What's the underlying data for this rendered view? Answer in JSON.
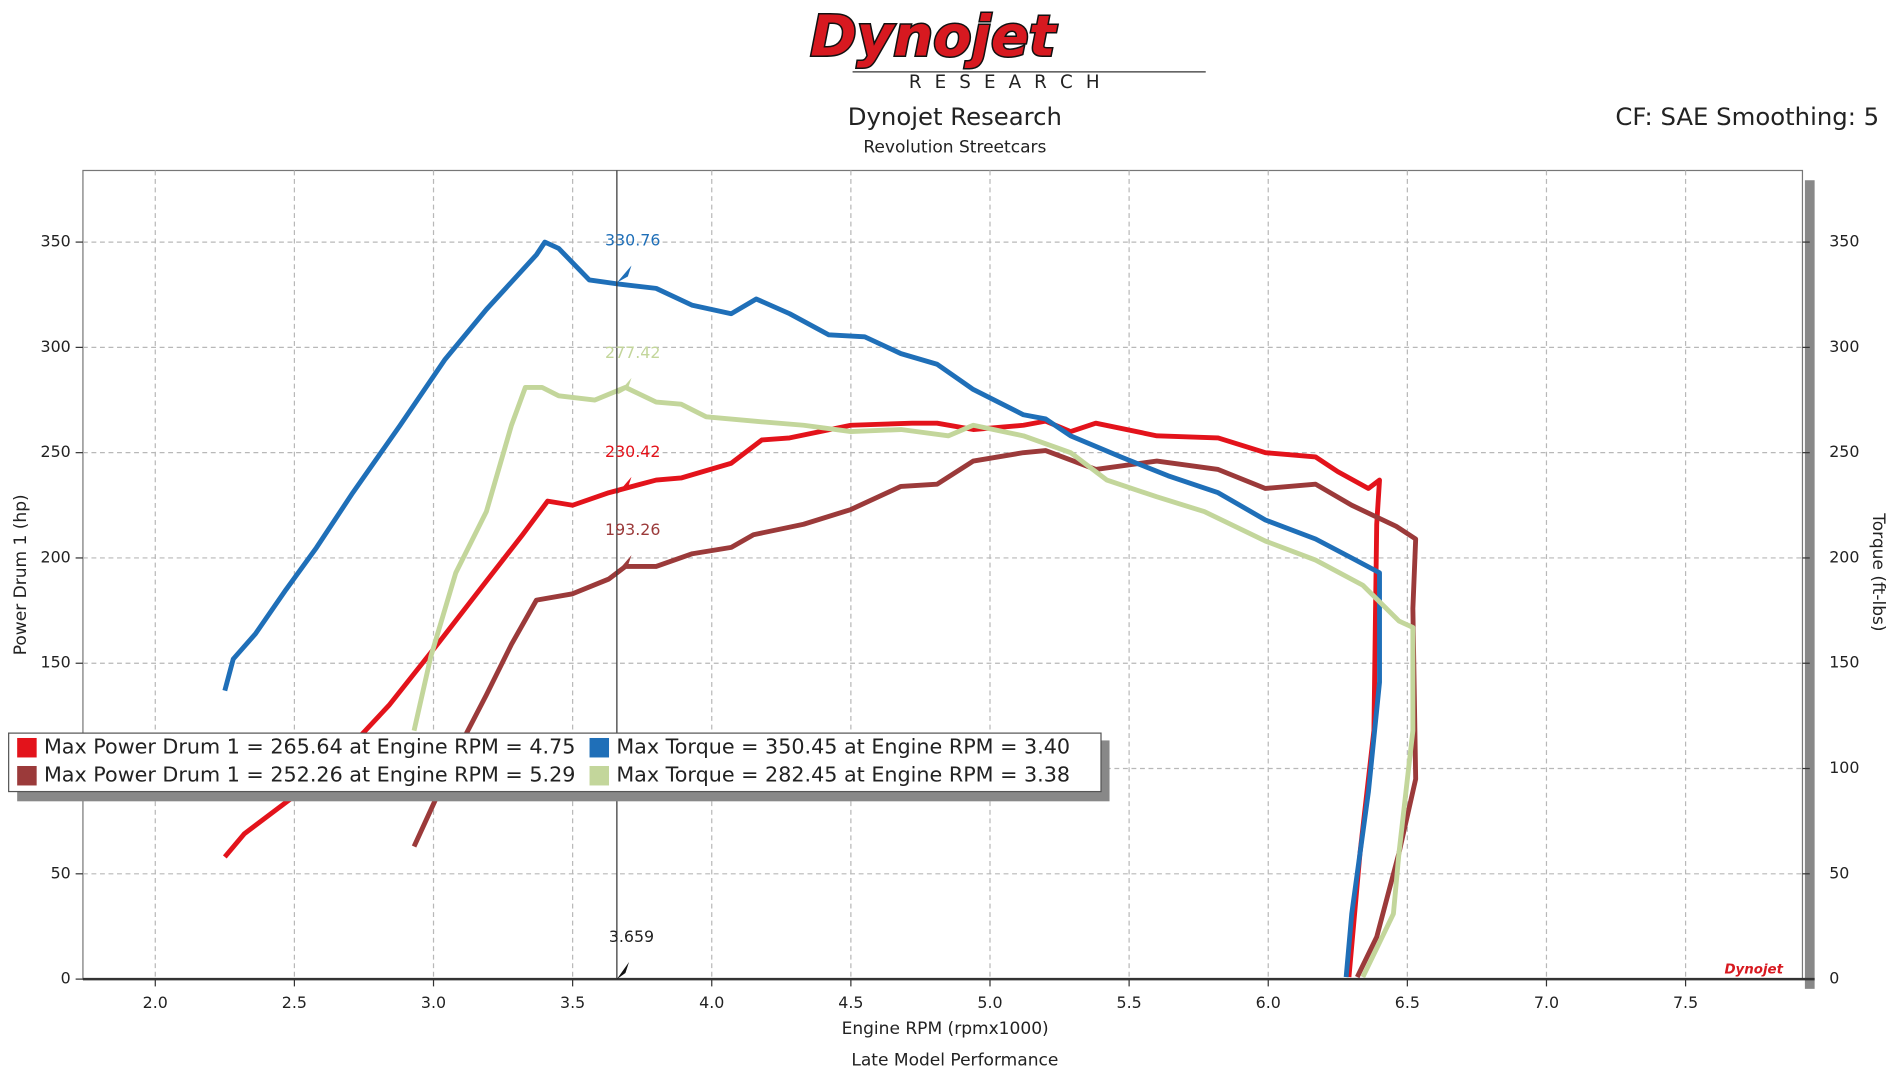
{
  "chart_data": {
    "type": "line",
    "logo": "Dynojet",
    "logo_subtitle": "R E S E A R C H",
    "title": "Dynojet Research",
    "subtitle": "Revolution Streetcars",
    "correction": "CF: SAE Smoothing: 5",
    "x_label": "Engine RPM (rpmx1000)",
    "y_label": "Power Drum 1 (hp)",
    "y2_label": "Torque (ft-lbs)",
    "footer": "Late Model Performance",
    "xlim": [
      1.74,
      7.92
    ],
    "ylim": [
      0,
      384
    ],
    "y2lim": [
      0,
      384
    ],
    "xticks": [
      {
        "value": 2.0,
        "label": "2.0"
      },
      {
        "value": 2.5,
        "label": "2.5"
      },
      {
        "value": 3.0,
        "label": "3.0"
      },
      {
        "value": 3.5,
        "label": "3.5"
      },
      {
        "value": 4.0,
        "label": "4.0"
      },
      {
        "value": 4.5,
        "label": "4.5"
      },
      {
        "value": 5.0,
        "label": "5.0"
      },
      {
        "value": 5.5,
        "label": "5.5"
      },
      {
        "value": 6.0,
        "label": "6.0"
      },
      {
        "value": 6.5,
        "label": "6.5"
      },
      {
        "value": 7.0,
        "label": "7.0"
      },
      {
        "value": 7.5,
        "label": "7.5"
      }
    ],
    "yticks": [
      0,
      50,
      100,
      150,
      200,
      250,
      300,
      350
    ],
    "y2ticks": [
      0,
      50,
      100,
      150,
      200,
      250,
      300,
      350
    ],
    "grid": true,
    "series": [
      {
        "name": "Max Power Drum 1 = 265.64 at Engine RPM = 4.75",
        "color": "#e3131b",
        "x": [
          2.25,
          2.32,
          2.49,
          2.67,
          2.84,
          3.02,
          3.19,
          3.32,
          3.41,
          3.5,
          3.63,
          3.8,
          3.89,
          4.07,
          4.18,
          4.28,
          4.5,
          4.72,
          4.81,
          4.94,
          5.12,
          5.2,
          5.29,
          5.38,
          5.6,
          5.82,
          5.99,
          6.17,
          6.25,
          6.36,
          6.4,
          6.39,
          6.38,
          6.33,
          6.29
        ],
        "values": [
          58,
          69,
          86,
          106,
          130,
          160,
          189,
          211,
          227,
          225,
          231,
          237,
          238,
          245,
          256,
          257,
          263,
          264,
          264,
          261,
          263,
          265,
          260,
          264,
          258,
          257,
          250,
          248,
          241,
          233,
          237,
          216,
          118,
          60,
          1
        ]
      },
      {
        "name": "Max Power Drum 1 = 252.26 at Engine RPM = 5.29",
        "color": "#9b3a3a",
        "x": [
          2.93,
          3.02,
          3.1,
          3.19,
          3.28,
          3.37,
          3.5,
          3.63,
          3.69,
          3.8,
          3.93,
          4.07,
          4.15,
          4.33,
          4.5,
          4.68,
          4.81,
          4.94,
          5.12,
          5.2,
          5.38,
          5.6,
          5.82,
          5.99,
          6.17,
          6.3,
          6.46,
          6.53,
          6.52,
          6.53,
          6.47,
          6.39,
          6.32
        ],
        "values": [
          63,
          89,
          112,
          135,
          159,
          180,
          183,
          190,
          196,
          196,
          202,
          205,
          211,
          216,
          223,
          234,
          235,
          246,
          250,
          251,
          242,
          246,
          242,
          233,
          235,
          225,
          215,
          209,
          176,
          95,
          60,
          20,
          1
        ]
      },
      {
        "name": "Max Torque = 350.45 at Engine RPM = 3.40",
        "color": "#1f6fb8",
        "axis": "y2",
        "x": [
          2.25,
          2.28,
          2.36,
          2.47,
          2.58,
          2.71,
          2.88,
          3.04,
          3.19,
          3.37,
          3.4,
          3.45,
          3.56,
          3.67,
          3.8,
          3.93,
          4.07,
          4.16,
          4.28,
          4.42,
          4.55,
          4.68,
          4.81,
          4.94,
          5.12,
          5.2,
          5.29,
          5.47,
          5.64,
          5.82,
          5.99,
          6.17,
          6.3,
          6.4,
          6.4,
          6.36,
          6.3,
          6.28
        ],
        "values": [
          137,
          152,
          164,
          185,
          205,
          231,
          263,
          294,
          318,
          344,
          350,
          347,
          332,
          330,
          328,
          320,
          316,
          323,
          316,
          306,
          305,
          297,
          292,
          280,
          268,
          266,
          258,
          248,
          239,
          231,
          218,
          209,
          200,
          193,
          141,
          89,
          31,
          1
        ]
      },
      {
        "name": "Max Torque = 282.45 at Engine RPM = 3.38",
        "color": "#c3d69b",
        "axis": "y2",
        "x": [
          2.93,
          2.99,
          3.08,
          3.19,
          3.28,
          3.33,
          3.39,
          3.45,
          3.58,
          3.69,
          3.8,
          3.89,
          3.98,
          4.15,
          4.33,
          4.5,
          4.68,
          4.85,
          4.94,
          5.12,
          5.29,
          5.42,
          5.6,
          5.77,
          5.99,
          6.17,
          6.34,
          6.47,
          6.52,
          6.52,
          6.47,
          6.45,
          6.34
        ],
        "values": [
          118,
          153,
          193,
          222,
          263,
          281,
          281,
          277,
          275,
          281,
          274,
          273,
          267,
          265,
          263,
          260,
          261,
          258,
          263,
          258,
          250,
          237,
          229,
          222,
          208,
          199,
          187,
          170,
          167,
          118,
          60,
          31,
          1
        ]
      }
    ],
    "cursor": {
      "x": 3.659,
      "values": [
        330.76,
        277.42,
        230.42,
        193.26
      ],
      "colors": [
        "#1f6fb8",
        "#c3d69b",
        "#e3131b",
        "#9b3a3a"
      ]
    }
  }
}
